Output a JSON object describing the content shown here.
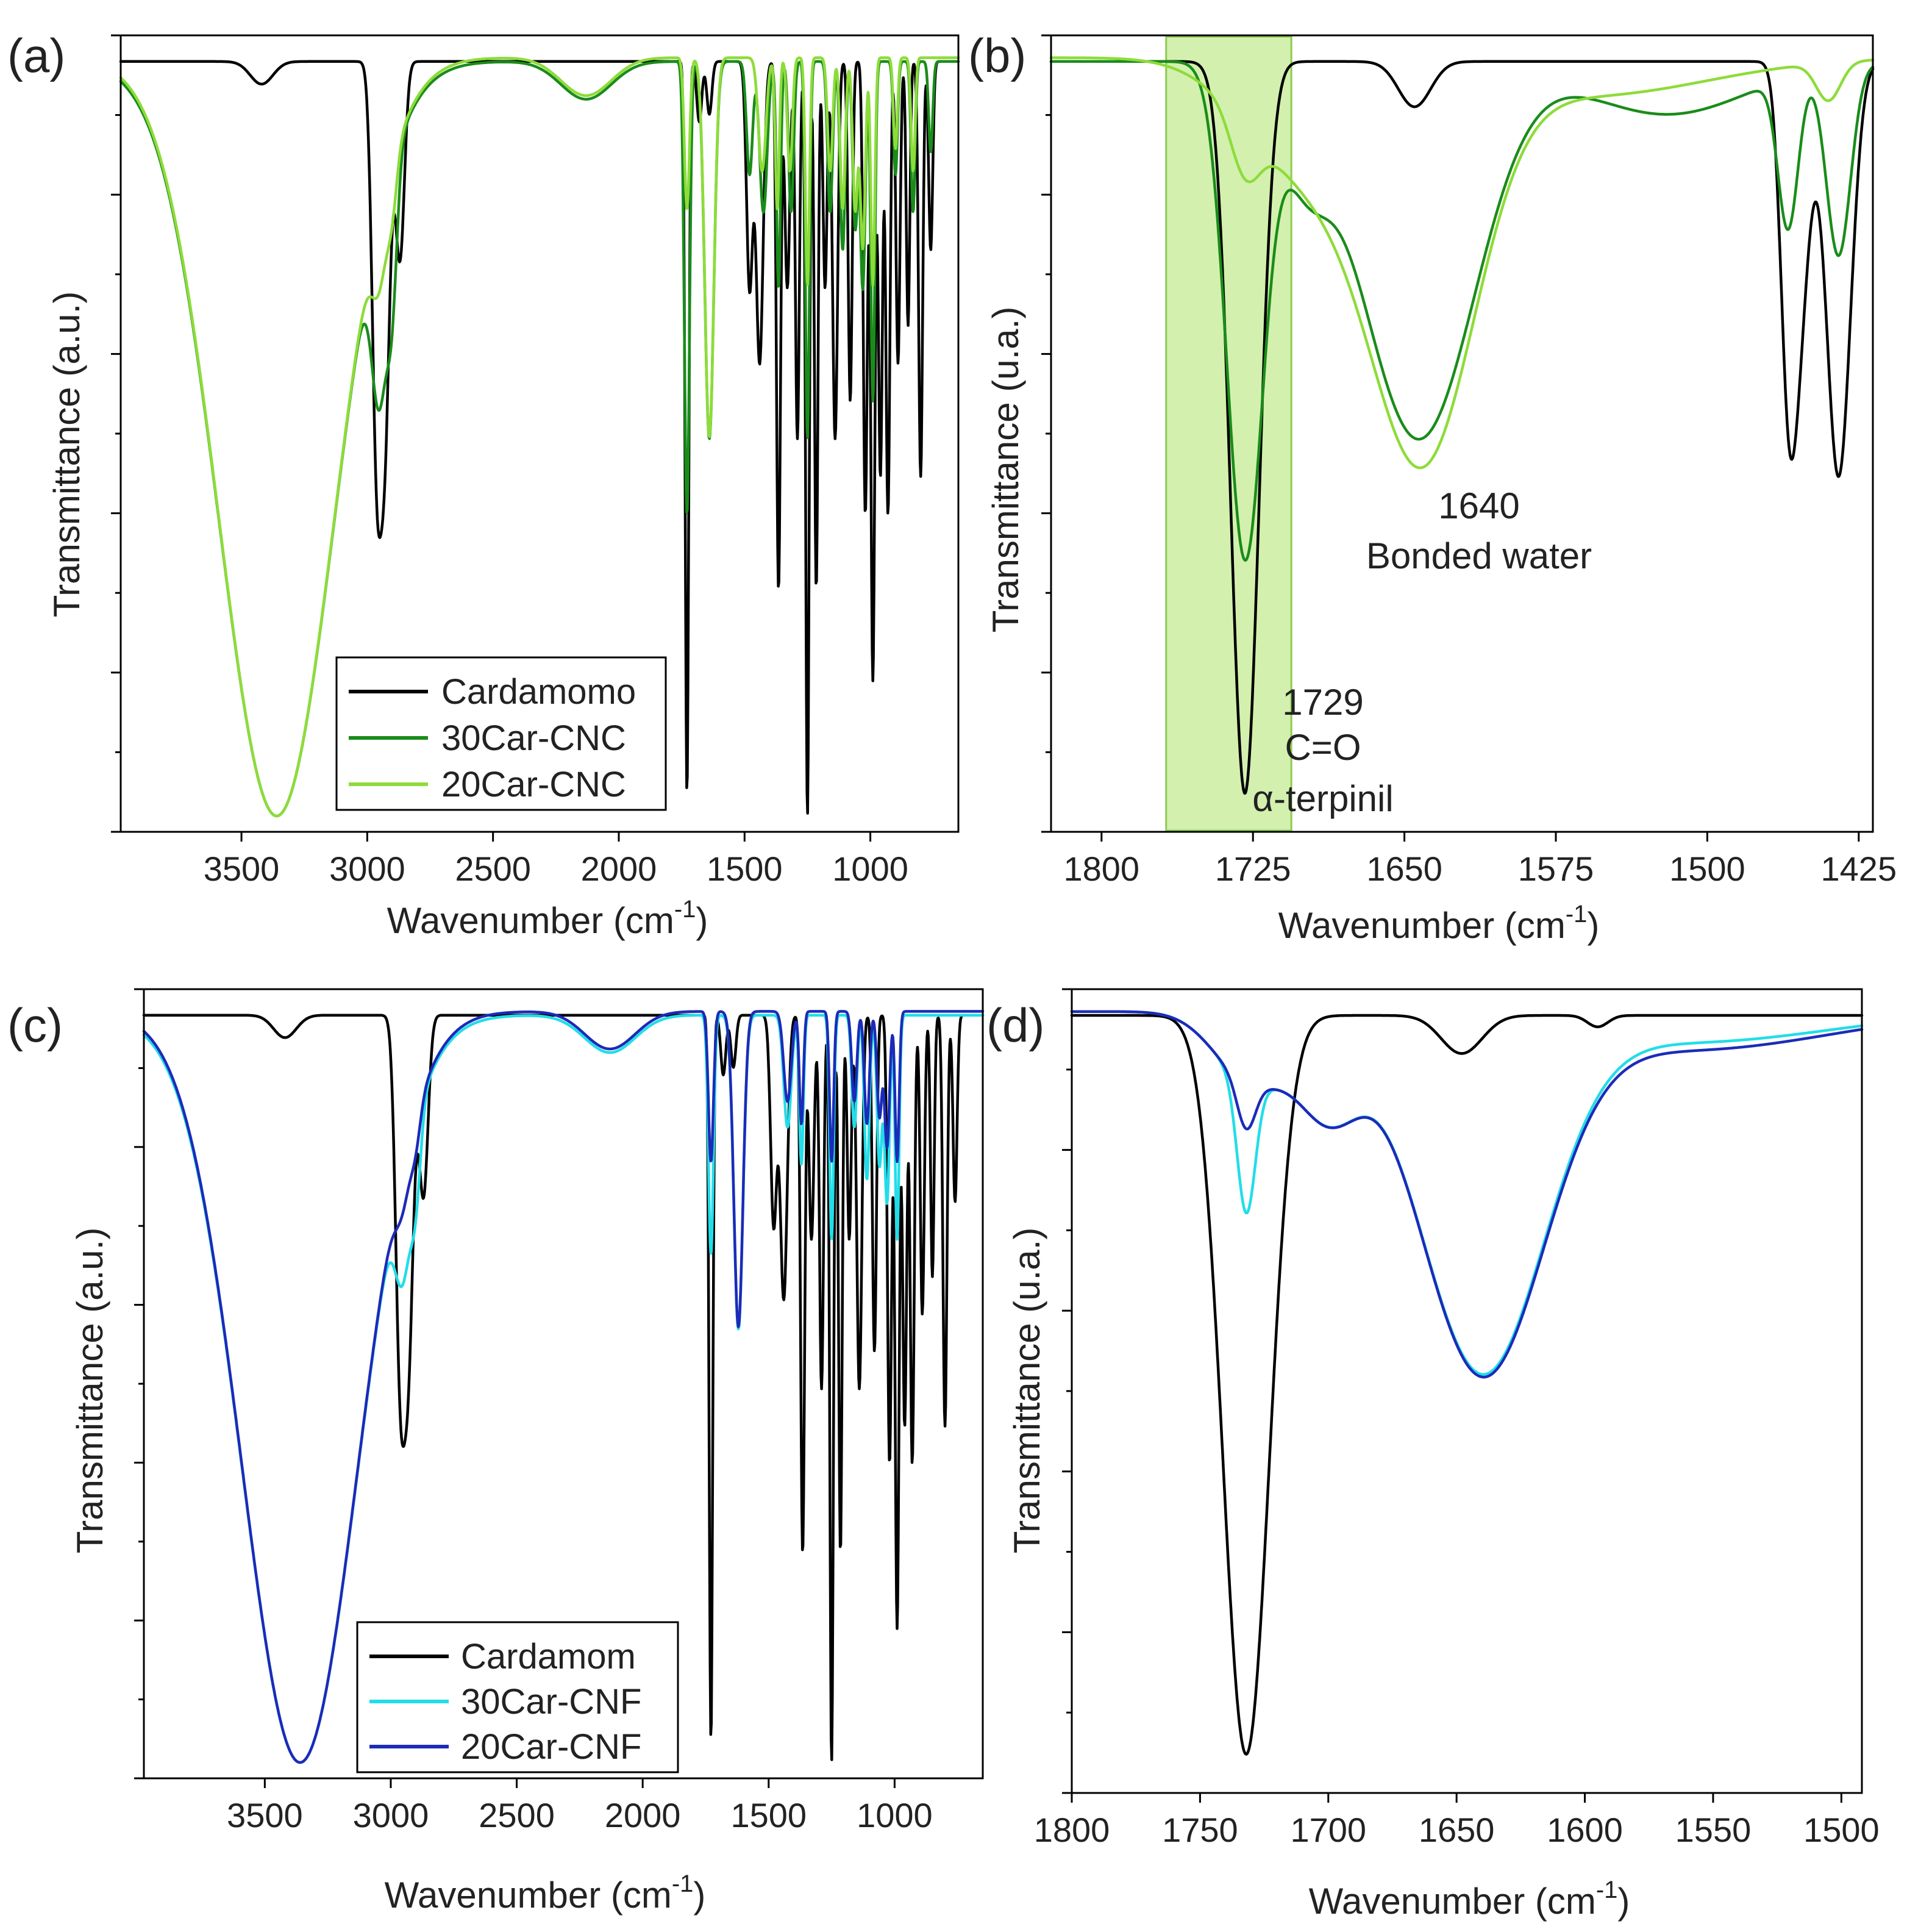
{
  "figure": {
    "panels": [
      {
        "id": "a",
        "label": "(a)",
        "ylabel": "Transmittance (a.u.)",
        "xlabel_main": "Wavenumber (cm",
        "xlabel_sup": "-1",
        "xlabel_close": ")",
        "xticks": [
          "3500",
          "3000",
          "2500",
          "2000",
          "1500",
          "1000"
        ],
        "legend": [
          "Cardamomo",
          "30Car-CNC",
          "20Car-CNC"
        ]
      },
      {
        "id": "b",
        "label": "(b)",
        "ylabel": "Transmittance (u.a.)",
        "xlabel_main": "Wavenumber (cm",
        "xlabel_sup": "-1",
        "xlabel_close": ")",
        "xticks": [
          "1800",
          "1725",
          "1650",
          "1575",
          "1500",
          "1425"
        ],
        "annotations": {
          "peak1_value": "1729",
          "peak1_bond": "C=O",
          "peak1_compound": "α-terpinil",
          "peak2_value": "1640",
          "peak2_label": "Bonded water"
        }
      },
      {
        "id": "c",
        "label": "(c)",
        "ylabel": "Transmittance (a.u.)",
        "xlabel_main": "Wavenumber (cm",
        "xlabel_sup": "-1",
        "xlabel_close": ")",
        "xticks": [
          "3500",
          "3000",
          "2500",
          "2000",
          "1500",
          "1000"
        ],
        "legend": [
          "Cardamom",
          "30Car-CNF",
          "20Car-CNF"
        ]
      },
      {
        "id": "d",
        "label": "(d)",
        "ylabel": "Transmittance (u.a.)",
        "xlabel_main": "Wavenumber (cm",
        "xlabel_sup": "-1",
        "xlabel_close": ")",
        "xticks": [
          "1800",
          "1750",
          "1700",
          "1650",
          "1600",
          "1550",
          "1500"
        ]
      }
    ],
    "colors": {
      "cardamom": "#000000",
      "car30_cnc": "#1a8c1a",
      "car20_cnc": "#8ddc3a",
      "car30_cnf": "#22dde8",
      "car20_cnf": "#1c2bb8",
      "highlight_fill": "#c8ec9a",
      "highlight_stroke": "#8ccc50"
    }
  },
  "chart_data": [
    {
      "panel": "a",
      "type": "line",
      "xlabel": "Wavenumber (cm-1)",
      "ylabel": "Transmittance (a.u.)",
      "xlim": [
        3980,
        650
      ],
      "ylim": [
        0,
        1
      ],
      "x_reversed": true,
      "series": [
        {
          "name": "Cardamomo",
          "color": "#000000",
          "baseline": 0.985,
          "bands": [
            [
              3420,
              45,
              0.03
            ],
            [
              2964,
              18,
              0.46
            ],
            [
              2930,
              20,
              0.48
            ],
            [
              2870,
              18,
              0.26
            ],
            [
              1729,
              7,
              0.97
            ],
            [
              1680,
              10,
              0.08
            ],
            [
              1640,
              10,
              0.07
            ],
            [
              1480,
              12,
              0.3
            ],
            [
              1440,
              14,
              0.4
            ],
            [
              1365,
              8,
              0.7
            ],
            [
              1330,
              10,
              0.3
            ],
            [
              1290,
              8,
              0.5
            ],
            [
              1250,
              7,
              1.0
            ],
            [
              1215,
              7,
              0.7
            ],
            [
              1180,
              8,
              0.3
            ],
            [
              1140,
              10,
              0.5
            ],
            [
              1080,
              8,
              0.45
            ],
            [
              1020,
              8,
              0.6
            ],
            [
              990,
              8,
              0.82
            ],
            [
              960,
              8,
              0.55
            ],
            [
              930,
              8,
              0.6
            ],
            [
              890,
              8,
              0.4
            ],
            [
              850,
              7,
              0.35
            ],
            [
              800,
              8,
              0.55
            ],
            [
              760,
              8,
              0.25
            ]
          ]
        },
        {
          "name": "30Car-CNC",
          "color": "#1a8c1a",
          "baseline": 0.985,
          "bands": [
            [
              3360,
              230,
              1.0
            ],
            [
              2950,
              30,
              0.25
            ],
            [
              2900,
              20,
              0.16
            ],
            [
              2130,
              100,
              0.05
            ],
            [
              1729,
              10,
              0.6
            ],
            [
              1640,
              18,
              0.5
            ],
            [
              1480,
              12,
              0.15
            ],
            [
              1425,
              15,
              0.2
            ],
            [
              1365,
              8,
              0.3
            ],
            [
              1315,
              10,
              0.2
            ],
            [
              1250,
              8,
              0.5
            ],
            [
              1160,
              10,
              0.2
            ],
            [
              1110,
              10,
              0.25
            ],
            [
              1060,
              10,
              0.22
            ],
            [
              1030,
              10,
              0.3
            ],
            [
              990,
              8,
              0.45
            ],
            [
              900,
              8,
              0.15
            ],
            [
              830,
              8,
              0.2
            ],
            [
              760,
              8,
              0.12
            ]
          ]
        },
        {
          "name": "20Car-CNC",
          "color": "#8ddc3a",
          "baseline": 0.99,
          "bands": [
            [
              3360,
              230,
              1.0
            ],
            [
              2950,
              30,
              0.1
            ],
            [
              2900,
              20,
              0.06
            ],
            [
              2130,
              100,
              0.05
            ],
            [
              1729,
              10,
              0.2
            ],
            [
              1640,
              18,
              0.5
            ],
            [
              1430,
              15,
              0.15
            ],
            [
              1370,
              8,
              0.2
            ],
            [
              1320,
              10,
              0.15
            ],
            [
              1250,
              8,
              0.3
            ],
            [
              1160,
              10,
              0.15
            ],
            [
              1110,
              10,
              0.2
            ],
            [
              1060,
              10,
              0.2
            ],
            [
              1030,
              10,
              0.25
            ],
            [
              990,
              8,
              0.3
            ],
            [
              900,
              8,
              0.12
            ],
            [
              830,
              8,
              0.15
            ]
          ]
        }
      ]
    },
    {
      "panel": "b",
      "type": "line",
      "xlabel": "Wavenumber (cm-1)",
      "ylabel": "Transmittance (u.a.)",
      "xlim": [
        1825,
        1418
      ],
      "ylim": [
        0,
        1
      ],
      "x_reversed": true,
      "highlight_x": [
        1768,
        1706
      ],
      "series": [
        {
          "name": "Cardamomo",
          "color": "#000000",
          "baseline": 0.985,
          "bands": [
            [
              1729,
              7,
              0.97
            ],
            [
              1645,
              8,
              0.06
            ],
            [
              1460,
              4,
              0.35
            ],
            [
              1435,
              6,
              0.55
            ],
            [
              1454,
              5,
              0.3
            ]
          ]
        },
        {
          "name": "30Car-CNC",
          "color": "#1a8c1a",
          "baseline": 0.985,
          "bands": [
            [
              1729,
              9,
              0.65
            ],
            [
              1643,
              28,
              0.5
            ],
            [
              1700,
              12,
              0.12
            ],
            [
              1460,
              5,
              0.2
            ],
            [
              1435,
              6,
              0.25
            ],
            [
              1520,
              40,
              0.07
            ]
          ]
        },
        {
          "name": "20Car-CNC",
          "color": "#8ddc3a",
          "baseline": 0.99,
          "bands": [
            [
              1729,
              7,
              0.07
            ],
            [
              1641,
              26,
              0.5
            ],
            [
              1700,
              30,
              0.14
            ],
            [
              1560,
              60,
              0.05
            ],
            [
              1440,
              6,
              0.05
            ]
          ]
        }
      ]
    },
    {
      "panel": "c",
      "type": "line",
      "xlabel": "Wavenumber (cm-1)",
      "ylabel": "Transmittance (a.u.)",
      "xlim": [
        3980,
        650
      ],
      "ylim": [
        0,
        1
      ],
      "x_reversed": true,
      "series": [
        {
          "name": "Cardamom",
          "color": "#000000",
          "baseline": 0.985,
          "bands": [
            [
              3420,
              45,
              0.03
            ],
            [
              2964,
              18,
              0.42
            ],
            [
              2930,
              20,
              0.44
            ],
            [
              2870,
              18,
              0.24
            ],
            [
              1729,
              7,
              0.97
            ],
            [
              1680,
              10,
              0.08
            ],
            [
              1640,
              10,
              0.07
            ],
            [
              1480,
              12,
              0.28
            ],
            [
              1440,
              14,
              0.38
            ],
            [
              1365,
              8,
              0.72
            ],
            [
              1330,
              10,
              0.3
            ],
            [
              1290,
              8,
              0.5
            ],
            [
              1250,
              7,
              1.0
            ],
            [
              1215,
              7,
              0.72
            ],
            [
              1180,
              8,
              0.3
            ],
            [
              1140,
              10,
              0.5
            ],
            [
              1080,
              8,
              0.45
            ],
            [
              1020,
              8,
              0.6
            ],
            [
              990,
              8,
              0.82
            ],
            [
              960,
              8,
              0.55
            ],
            [
              930,
              8,
              0.6
            ],
            [
              890,
              8,
              0.4
            ],
            [
              850,
              7,
              0.35
            ],
            [
              800,
              8,
              0.55
            ],
            [
              760,
              8,
              0.25
            ]
          ]
        },
        {
          "name": "30Car-CNF",
          "color": "#22dde8",
          "baseline": 0.985,
          "bands": [
            [
              3360,
              230,
              1.0
            ],
            [
              2950,
              30,
              0.15
            ],
            [
              2900,
              20,
              0.1
            ],
            [
              2130,
              100,
              0.05
            ],
            [
              1729,
              10,
              0.32
            ],
            [
              1620,
              18,
              0.42
            ],
            [
              1425,
              15,
              0.15
            ],
            [
              1370,
              8,
              0.2
            ],
            [
              1250,
              8,
              0.3
            ],
            [
              1160,
              10,
              0.15
            ],
            [
              1110,
              10,
              0.22
            ],
            [
              1060,
              10,
              0.2
            ],
            [
              1030,
              10,
              0.25
            ],
            [
              990,
              8,
              0.3
            ]
          ]
        },
        {
          "name": "20Car-CNF",
          "color": "#1c2bb8",
          "baseline": 0.99,
          "bands": [
            [
              3360,
              230,
              1.0
            ],
            [
              2950,
              30,
              0.06
            ],
            [
              2900,
              20,
              0.04
            ],
            [
              2130,
              100,
              0.05
            ],
            [
              1729,
              10,
              0.2
            ],
            [
              1620,
              18,
              0.42
            ],
            [
              1425,
              15,
              0.12
            ],
            [
              1370,
              8,
              0.15
            ],
            [
              1250,
              8,
              0.2
            ],
            [
              1160,
              10,
              0.12
            ],
            [
              1110,
              10,
              0.15
            ],
            [
              1060,
              10,
              0.14
            ],
            [
              1030,
              10,
              0.18
            ],
            [
              990,
              8,
              0.2
            ]
          ]
        }
      ]
    },
    {
      "panel": "d",
      "type": "line",
      "xlabel": "Wavenumber (cm-1)",
      "ylabel": "Transmittance (u.a.)",
      "xlim": [
        1800,
        1492
      ],
      "ylim": [
        0,
        1
      ],
      "x_reversed": true,
      "series": [
        {
          "name": "Cardamom",
          "color": "#000000",
          "baseline": 0.985,
          "bands": [
            [
              1732,
              9,
              0.97
            ],
            [
              1648,
              8,
              0.05
            ],
            [
              1595,
              4,
              0.015
            ]
          ]
        },
        {
          "name": "30Car-CNF",
          "color": "#22dde8",
          "baseline": 0.99,
          "bands": [
            [
              1732,
              3.5,
              0.17
            ],
            [
              1640,
              24,
              0.46
            ],
            [
              1700,
              12,
              0.12
            ],
            [
              1730,
              14,
              0.09
            ],
            [
              1560,
              55,
              0.04
            ]
          ]
        },
        {
          "name": "20Car-CNF",
          "color": "#1c2bb8",
          "baseline": 0.99,
          "bands": [
            [
              1732,
              3.5,
              0.06
            ],
            [
              1640,
              24,
              0.46
            ],
            [
              1700,
              12,
              0.12
            ],
            [
              1730,
              14,
              0.09
            ],
            [
              1560,
              55,
              0.05
            ]
          ]
        }
      ]
    }
  ]
}
